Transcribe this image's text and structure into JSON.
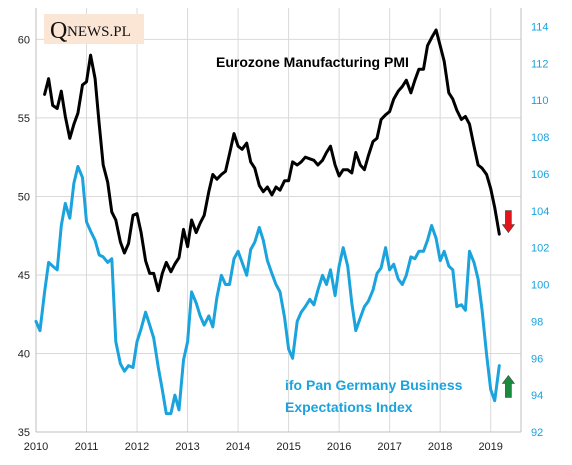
{
  "logo": {
    "q": "Q",
    "text": "NEWS.PL"
  },
  "chart_data": {
    "type": "line",
    "title": "",
    "x_axis": {
      "range": [
        2010,
        2019.6
      ],
      "ticks": [
        2010,
        2011,
        2012,
        2013,
        2014,
        2015,
        2016,
        2017,
        2018,
        2019
      ],
      "grid": true
    },
    "y_left": {
      "range": [
        35,
        62
      ],
      "ticks": [
        35,
        40,
        45,
        50,
        55,
        60
      ],
      "grid": true
    },
    "y_right": {
      "range": [
        92,
        115
      ],
      "ticks": [
        92,
        94,
        96,
        98,
        100,
        102,
        104,
        106,
        108,
        110,
        112,
        114
      ],
      "color": "#1aa3dd"
    },
    "series": [
      {
        "name": "Eurozone Manufacturing  PMI",
        "axis": "left",
        "color": "#000000",
        "points": [
          [
            2010.17,
            56.5
          ],
          [
            2010.25,
            57.5
          ],
          [
            2010.33,
            55.8
          ],
          [
            2010.42,
            55.6
          ],
          [
            2010.5,
            56.7
          ],
          [
            2010.58,
            55.1
          ],
          [
            2010.67,
            53.7
          ],
          [
            2010.75,
            54.6
          ],
          [
            2010.83,
            55.3
          ],
          [
            2010.92,
            57.1
          ],
          [
            2011.0,
            57.3
          ],
          [
            2011.08,
            59.0
          ],
          [
            2011.17,
            57.5
          ],
          [
            2011.25,
            54.6
          ],
          [
            2011.33,
            52.0
          ],
          [
            2011.42,
            50.9
          ],
          [
            2011.5,
            49.0
          ],
          [
            2011.58,
            48.5
          ],
          [
            2011.67,
            47.1
          ],
          [
            2011.75,
            46.4
          ],
          [
            2011.83,
            47.0
          ],
          [
            2011.92,
            48.8
          ],
          [
            2012.0,
            48.9
          ],
          [
            2012.08,
            47.7
          ],
          [
            2012.17,
            45.9
          ],
          [
            2012.25,
            45.1
          ],
          [
            2012.33,
            45.1
          ],
          [
            2012.42,
            44.0
          ],
          [
            2012.5,
            45.1
          ],
          [
            2012.58,
            45.8
          ],
          [
            2012.67,
            45.2
          ],
          [
            2012.75,
            45.7
          ],
          [
            2012.83,
            46.1
          ],
          [
            2012.92,
            47.9
          ],
          [
            2013.0,
            46.8
          ],
          [
            2013.08,
            48.5
          ],
          [
            2013.17,
            47.7
          ],
          [
            2013.25,
            48.3
          ],
          [
            2013.33,
            48.8
          ],
          [
            2013.42,
            50.3
          ],
          [
            2013.5,
            51.4
          ],
          [
            2013.58,
            51.1
          ],
          [
            2013.67,
            51.4
          ],
          [
            2013.75,
            51.6
          ],
          [
            2013.83,
            52.7
          ],
          [
            2013.92,
            54.0
          ],
          [
            2014.0,
            53.2
          ],
          [
            2014.08,
            53.0
          ],
          [
            2014.17,
            53.4
          ],
          [
            2014.25,
            52.2
          ],
          [
            2014.33,
            51.8
          ],
          [
            2014.42,
            50.7
          ],
          [
            2014.5,
            50.3
          ],
          [
            2014.58,
            50.6
          ],
          [
            2014.67,
            50.1
          ],
          [
            2014.75,
            50.6
          ],
          [
            2014.83,
            50.4
          ],
          [
            2014.92,
            51.0
          ],
          [
            2015.0,
            51.0
          ],
          [
            2015.08,
            52.2
          ],
          [
            2015.17,
            52.0
          ],
          [
            2015.25,
            52.2
          ],
          [
            2015.33,
            52.5
          ],
          [
            2015.42,
            52.4
          ],
          [
            2015.5,
            52.3
          ],
          [
            2015.58,
            52.0
          ],
          [
            2015.67,
            52.3
          ],
          [
            2015.75,
            52.8
          ],
          [
            2015.83,
            53.2
          ],
          [
            2015.92,
            52.0
          ],
          [
            2016.0,
            51.3
          ],
          [
            2016.08,
            51.7
          ],
          [
            2016.17,
            51.7
          ],
          [
            2016.25,
            51.5
          ],
          [
            2016.33,
            52.8
          ],
          [
            2016.42,
            52.0
          ],
          [
            2016.5,
            51.7
          ],
          [
            2016.58,
            52.6
          ],
          [
            2016.67,
            53.5
          ],
          [
            2016.75,
            53.7
          ],
          [
            2016.83,
            54.9
          ],
          [
            2016.92,
            55.2
          ],
          [
            2017.0,
            55.4
          ],
          [
            2017.08,
            56.2
          ],
          [
            2017.17,
            56.7
          ],
          [
            2017.25,
            57.0
          ],
          [
            2017.33,
            57.4
          ],
          [
            2017.42,
            56.6
          ],
          [
            2017.5,
            57.4
          ],
          [
            2017.58,
            58.1
          ],
          [
            2017.67,
            58.1
          ],
          [
            2017.75,
            59.6
          ],
          [
            2017.83,
            60.1
          ],
          [
            2017.92,
            60.6
          ],
          [
            2018.0,
            59.6
          ],
          [
            2018.08,
            58.6
          ],
          [
            2018.17,
            56.6
          ],
          [
            2018.25,
            56.2
          ],
          [
            2018.33,
            55.5
          ],
          [
            2018.42,
            54.9
          ],
          [
            2018.5,
            55.1
          ],
          [
            2018.58,
            54.6
          ],
          [
            2018.67,
            53.2
          ],
          [
            2018.75,
            52.0
          ],
          [
            2018.83,
            51.8
          ],
          [
            2018.92,
            51.4
          ],
          [
            2019.0,
            50.5
          ],
          [
            2019.08,
            49.3
          ],
          [
            2019.17,
            47.6
          ]
        ]
      },
      {
        "name": "ifo Pan Germany Business Expectations  Index",
        "axis": "right",
        "color": "#1aa3dd",
        "points": [
          [
            2010.0,
            98.0
          ],
          [
            2010.08,
            97.5
          ],
          [
            2010.17,
            99.6
          ],
          [
            2010.25,
            101.2
          ],
          [
            2010.33,
            101.0
          ],
          [
            2010.42,
            100.8
          ],
          [
            2010.5,
            103.2
          ],
          [
            2010.58,
            104.4
          ],
          [
            2010.67,
            103.6
          ],
          [
            2010.75,
            105.5
          ],
          [
            2010.83,
            106.4
          ],
          [
            2010.92,
            105.8
          ],
          [
            2011.0,
            103.4
          ],
          [
            2011.08,
            102.9
          ],
          [
            2011.17,
            102.4
          ],
          [
            2011.25,
            101.6
          ],
          [
            2011.33,
            101.5
          ],
          [
            2011.42,
            101.2
          ],
          [
            2011.5,
            101.4
          ],
          [
            2011.58,
            96.9
          ],
          [
            2011.67,
            95.7
          ],
          [
            2011.75,
            95.3
          ],
          [
            2011.83,
            95.6
          ],
          [
            2011.92,
            95.5
          ],
          [
            2012.0,
            96.9
          ],
          [
            2012.08,
            97.6
          ],
          [
            2012.17,
            98.5
          ],
          [
            2012.25,
            97.8
          ],
          [
            2012.33,
            97.1
          ],
          [
            2012.42,
            95.5
          ],
          [
            2012.5,
            94.3
          ],
          [
            2012.58,
            93.0
          ],
          [
            2012.67,
            93.0
          ],
          [
            2012.75,
            94.0
          ],
          [
            2012.83,
            93.2
          ],
          [
            2012.92,
            95.9
          ],
          [
            2013.0,
            96.9
          ],
          [
            2013.08,
            99.6
          ],
          [
            2013.17,
            99.0
          ],
          [
            2013.25,
            98.3
          ],
          [
            2013.33,
            97.8
          ],
          [
            2013.42,
            98.3
          ],
          [
            2013.5,
            97.7
          ],
          [
            2013.58,
            99.3
          ],
          [
            2013.67,
            100.5
          ],
          [
            2013.75,
            100.0
          ],
          [
            2013.83,
            100.0
          ],
          [
            2013.92,
            101.4
          ],
          [
            2014.0,
            101.8
          ],
          [
            2014.08,
            101.2
          ],
          [
            2014.17,
            100.5
          ],
          [
            2014.25,
            101.9
          ],
          [
            2014.33,
            102.3
          ],
          [
            2014.42,
            103.1
          ],
          [
            2014.5,
            102.4
          ],
          [
            2014.58,
            101.3
          ],
          [
            2014.67,
            100.6
          ],
          [
            2014.75,
            100.0
          ],
          [
            2014.83,
            99.6
          ],
          [
            2014.92,
            98.2
          ],
          [
            2015.0,
            96.5
          ],
          [
            2015.08,
            96.0
          ],
          [
            2015.17,
            98.0
          ],
          [
            2015.25,
            98.5
          ],
          [
            2015.33,
            98.8
          ],
          [
            2015.42,
            99.2
          ],
          [
            2015.5,
            98.9
          ],
          [
            2015.58,
            99.7
          ],
          [
            2015.67,
            100.5
          ],
          [
            2015.75,
            100.0
          ],
          [
            2015.83,
            100.8
          ],
          [
            2015.92,
            99.4
          ],
          [
            2016.0,
            101.0
          ],
          [
            2016.08,
            102.0
          ],
          [
            2016.17,
            101.0
          ],
          [
            2016.25,
            99.0
          ],
          [
            2016.33,
            97.5
          ],
          [
            2016.42,
            98.2
          ],
          [
            2016.5,
            98.8
          ],
          [
            2016.58,
            99.1
          ],
          [
            2016.67,
            99.7
          ],
          [
            2016.75,
            100.6
          ],
          [
            2016.83,
            100.9
          ],
          [
            2016.92,
            102.0
          ],
          [
            2017.0,
            100.8
          ],
          [
            2017.08,
            101.1
          ],
          [
            2017.17,
            100.3
          ],
          [
            2017.25,
            100.0
          ],
          [
            2017.33,
            100.5
          ],
          [
            2017.42,
            101.5
          ],
          [
            2017.5,
            101.4
          ],
          [
            2017.58,
            101.8
          ],
          [
            2017.67,
            101.8
          ],
          [
            2017.75,
            102.4
          ],
          [
            2017.83,
            103.2
          ],
          [
            2017.92,
            102.5
          ],
          [
            2018.0,
            101.3
          ],
          [
            2018.08,
            101.8
          ],
          [
            2018.17,
            101.0
          ],
          [
            2018.25,
            100.8
          ],
          [
            2018.33,
            98.8
          ],
          [
            2018.42,
            98.9
          ],
          [
            2018.5,
            98.6
          ],
          [
            2018.58,
            101.8
          ],
          [
            2018.67,
            101.2
          ],
          [
            2018.75,
            100.3
          ],
          [
            2018.83,
            98.6
          ],
          [
            2018.92,
            96.2
          ],
          [
            2019.0,
            94.3
          ],
          [
            2019.08,
            93.7
          ],
          [
            2019.17,
            95.6
          ]
        ]
      }
    ],
    "labels": {
      "pmi": "Eurozone Manufacturing  PMI",
      "ifo_line1": "ifo Pan Germany Business",
      "ifo_line2": "Expectations  Index"
    },
    "arrows": [
      {
        "name": "pmi-down-arrow",
        "direction": "down",
        "color": "#e2141b",
        "x": 2019.35,
        "y_left": 48.4
      },
      {
        "name": "ifo-up-arrow",
        "direction": "up",
        "color": "#1a8a3e",
        "x": 2019.35,
        "y_left": 37.9
      }
    ]
  }
}
